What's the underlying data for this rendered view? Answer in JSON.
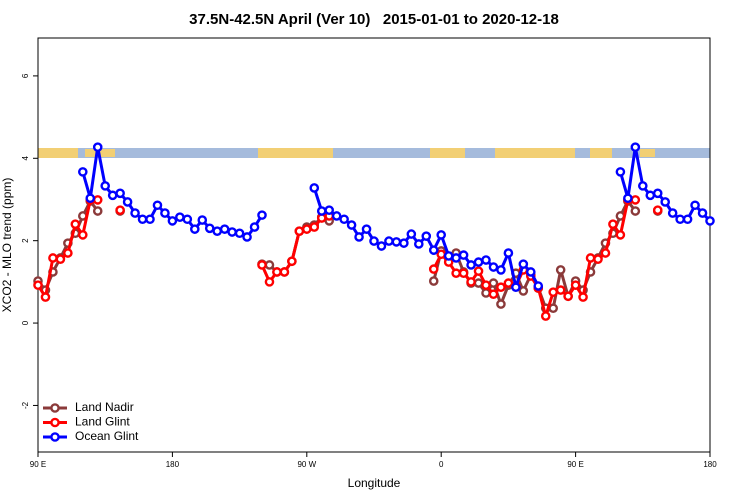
{
  "chart_data": {
    "type": "line",
    "title": "37.5N-42.5N April (Ver 10)   2015-01-01 to 2020-12-18",
    "x_label": "Longitude",
    "y_label": "XCO2 - MLO trend (ppm)",
    "xlim": [
      90,
      540
    ],
    "ylim": [
      -3.13,
      6.92
    ],
    "xticks": [
      {
        "value": 90,
        "label": "90 E"
      },
      180,
      {
        "value": 270,
        "label": "90 W"
      },
      {
        "value": 360,
        "label": "0"
      },
      {
        "value": 450,
        "label": "90 E"
      },
      {
        "value": 540,
        "label": "180"
      }
    ],
    "yticks": [
      -2,
      0,
      2,
      4,
      6
    ],
    "legend": "bottom-left",
    "x": [
      90,
      95,
      100,
      105,
      110,
      115,
      120,
      125,
      130,
      135,
      140,
      145,
      150,
      155,
      160,
      165,
      170,
      175,
      180,
      185,
      190,
      195,
      200,
      205,
      210,
      215,
      220,
      225,
      230,
      235,
      240,
      245,
      250,
      255,
      260,
      265,
      270,
      275,
      280,
      285,
      290,
      295,
      300,
      305,
      310,
      315,
      320,
      325,
      330,
      335,
      340,
      345,
      350,
      355,
      360,
      365,
      370,
      375,
      380,
      385,
      390,
      395,
      400,
      405,
      410,
      415,
      420,
      425,
      430,
      435,
      440,
      445,
      450,
      455,
      460,
      465,
      470,
      475,
      480,
      485,
      490,
      495,
      500,
      505,
      510,
      515,
      520,
      525,
      530,
      535,
      540
    ],
    "series": [
      {
        "name": "Land Nadir",
        "color": "#8b3a3a",
        "values": [
          1.02,
          0.8,
          1.24,
          1.58,
          1.94,
          2.18,
          2.6,
          2.96,
          2.72,
          null,
          null,
          2.72,
          null,
          null,
          null,
          null,
          null,
          null,
          null,
          null,
          null,
          null,
          null,
          null,
          null,
          null,
          null,
          null,
          null,
          null,
          1.43,
          1.41,
          1.24,
          1.24,
          1.5,
          2.23,
          2.33,
          2.38,
          2.57,
          2.48,
          null,
          null,
          null,
          null,
          null,
          null,
          null,
          null,
          null,
          null,
          null,
          null,
          null,
          1.02,
          1.75,
          1.58,
          1.7,
          1.24,
          0.97,
          0.97,
          0.73,
          0.97,
          0.46,
          0.92,
          1.21,
          0.78,
          1.17,
          0.85,
          0.36,
          0.36,
          1.29,
          0.65,
          1.02,
          0.8,
          1.24,
          1.58,
          1.94,
          2.18,
          2.6,
          2.96,
          2.72,
          null,
          null,
          2.72,
          null,
          null,
          null,
          null,
          null,
          null,
          null
        ]
      },
      {
        "name": "Land Glint",
        "color": "#ff0000",
        "values": [
          0.92,
          0.63,
          1.58,
          1.55,
          1.7,
          2.4,
          2.14,
          2.99,
          2.99,
          null,
          null,
          2.74,
          null,
          null,
          null,
          null,
          null,
          null,
          null,
          null,
          null,
          null,
          null,
          null,
          null,
          null,
          null,
          null,
          null,
          null,
          1.41,
          1.0,
          1.24,
          1.24,
          1.5,
          2.23,
          2.28,
          2.33,
          2.55,
          2.6,
          null,
          null,
          null,
          null,
          null,
          null,
          null,
          null,
          null,
          null,
          null,
          null,
          null,
          1.31,
          1.67,
          1.48,
          1.21,
          1.21,
          1.0,
          1.26,
          0.92,
          0.7,
          0.87,
          0.97,
          0.9,
          1.29,
          1.14,
          0.85,
          0.17,
          0.75,
          0.8,
          0.65,
          0.92,
          0.63,
          1.58,
          1.55,
          1.7,
          2.4,
          2.14,
          2.99,
          2.99,
          null,
          null,
          2.74,
          null,
          null,
          null,
          null,
          null,
          null,
          null
        ]
      },
      {
        "name": "Ocean Glint",
        "color": "#0000ff",
        "values": [
          null,
          null,
          null,
          null,
          null,
          null,
          3.67,
          3.03,
          4.27,
          3.33,
          3.1,
          3.15,
          2.94,
          2.67,
          2.52,
          2.52,
          2.86,
          2.67,
          2.48,
          2.57,
          2.52,
          2.28,
          2.5,
          2.3,
          2.23,
          2.28,
          2.21,
          2.18,
          2.09,
          2.33,
          2.62,
          null,
          null,
          null,
          null,
          null,
          null,
          3.28,
          2.72,
          2.74,
          2.6,
          2.52,
          2.38,
          2.09,
          2.28,
          1.99,
          1.87,
          1.99,
          1.97,
          1.94,
          2.16,
          1.92,
          2.11,
          1.77,
          2.14,
          1.63,
          1.58,
          1.65,
          1.41,
          1.48,
          1.53,
          1.36,
          1.29,
          1.7,
          0.87,
          1.43,
          1.24,
          0.9,
          null,
          null,
          null,
          null,
          null,
          null,
          null,
          null,
          null,
          null,
          3.67,
          3.03,
          4.27,
          3.33,
          3.1,
          3.15,
          2.94,
          2.67,
          2.52,
          2.52,
          2.86,
          2.67,
          2.48
        ]
      }
    ]
  }
}
